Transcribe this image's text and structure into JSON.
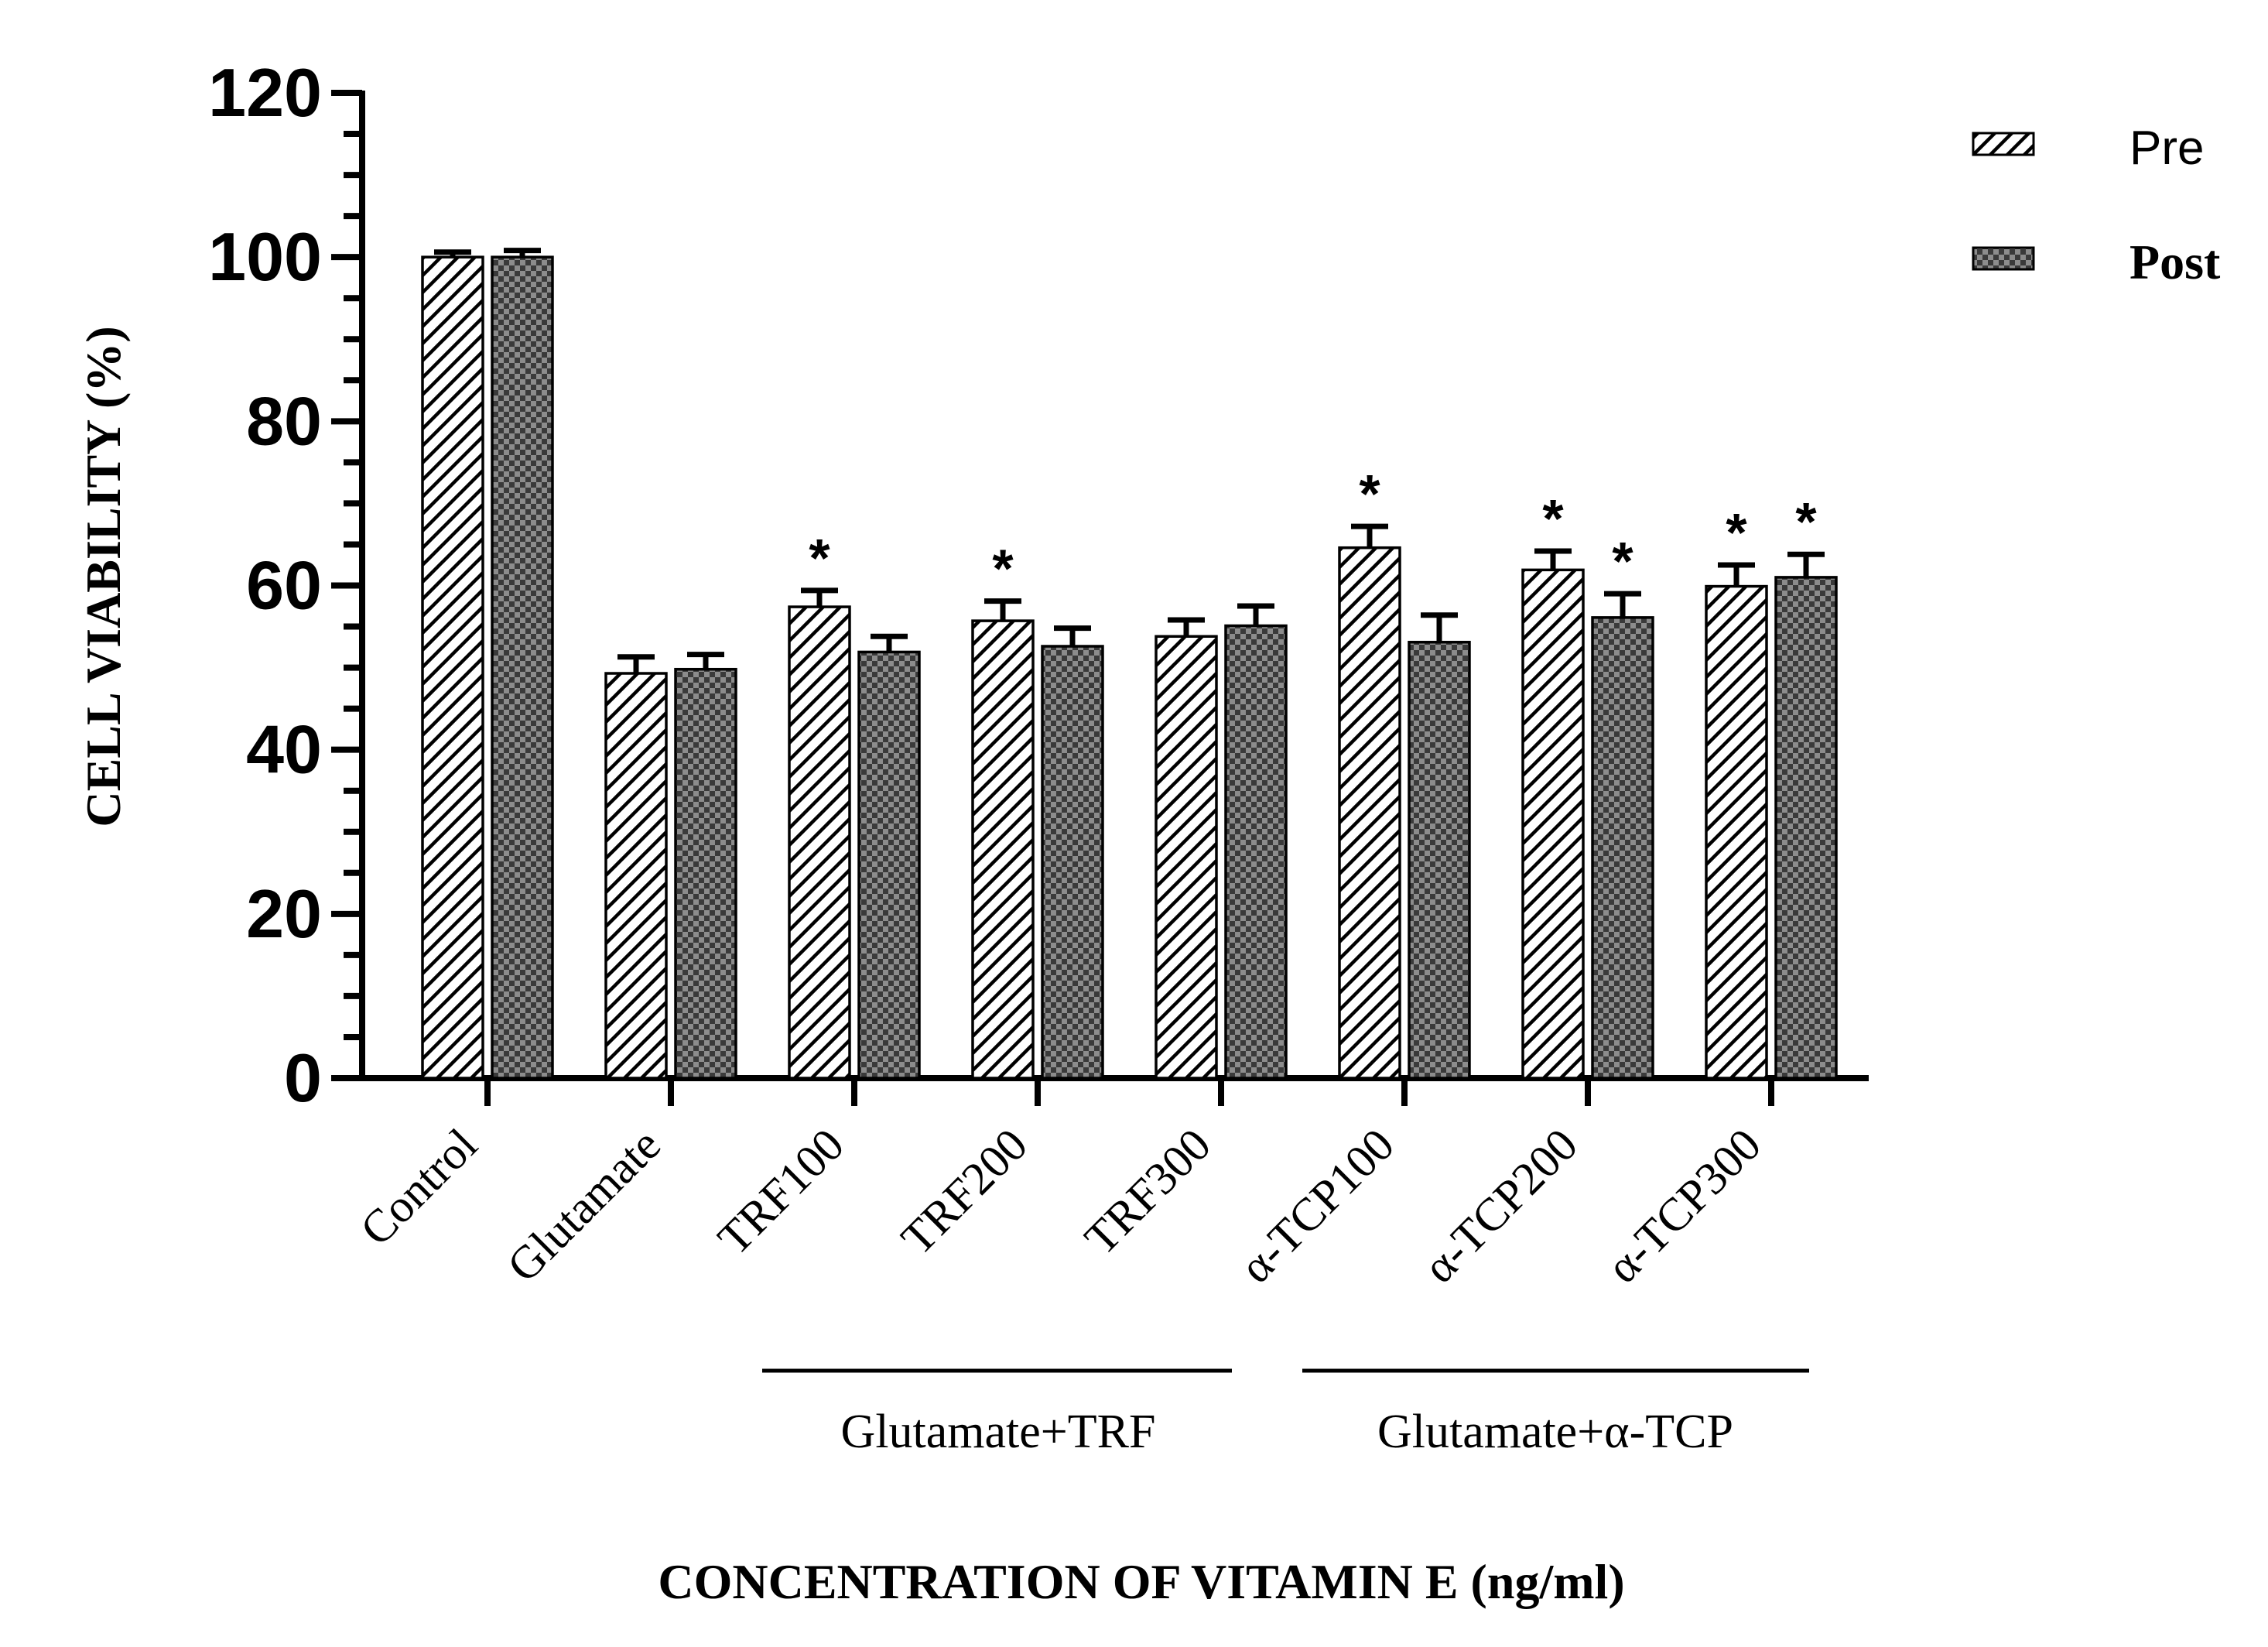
{
  "chart_data": {
    "type": "bar",
    "title": "",
    "ylabel": "CELL VIABILITY (%)",
    "xlabel": "CONCENTRATION OF VITAMIN E (ng/ml)",
    "ylim": [
      0,
      120
    ],
    "yticks": [
      0,
      20,
      40,
      60,
      80,
      100,
      120
    ],
    "categories": [
      "Control",
      "Glutamate",
      "TRF100",
      "TRF200",
      "TRF300",
      "α-TCP100",
      "α-TCP200",
      "α-TCP300"
    ],
    "series": [
      {
        "name": "Pre",
        "pattern": "diagonal-hatch",
        "values": [
          100,
          49.3,
          57.4,
          55.7,
          53.8,
          64.6,
          61.9,
          59.9
        ],
        "errors": [
          0.6,
          2.0,
          2.0,
          2.4,
          2.0,
          2.6,
          2.3,
          2.6
        ],
        "significant": [
          false,
          false,
          true,
          true,
          false,
          true,
          true,
          true
        ]
      },
      {
        "name": "Post",
        "pattern": "checkered",
        "values": [
          100,
          49.8,
          51.9,
          52.6,
          55.1,
          53.1,
          56.1,
          61.0
        ],
        "errors": [
          0.8,
          1.8,
          1.9,
          2.2,
          2.4,
          3.3,
          2.9,
          2.8
        ],
        "significant": [
          false,
          false,
          false,
          false,
          false,
          false,
          true,
          true
        ]
      }
    ],
    "significance_marker": "*",
    "groups": [
      {
        "label": "Glutamate+TRF",
        "categories": [
          "TRF100",
          "TRF200",
          "TRF300"
        ]
      },
      {
        "label": "Glutamate+α-TCP",
        "categories": [
          "α-TCP100",
          "α-TCP200",
          "α-TCP300"
        ]
      }
    ],
    "legend_position": "top-right",
    "colors": {
      "axis": "#000000",
      "pre_fill": "#ffffff",
      "post_fill": "#3a3a3a",
      "post_check": "#8c8c8c"
    }
  }
}
